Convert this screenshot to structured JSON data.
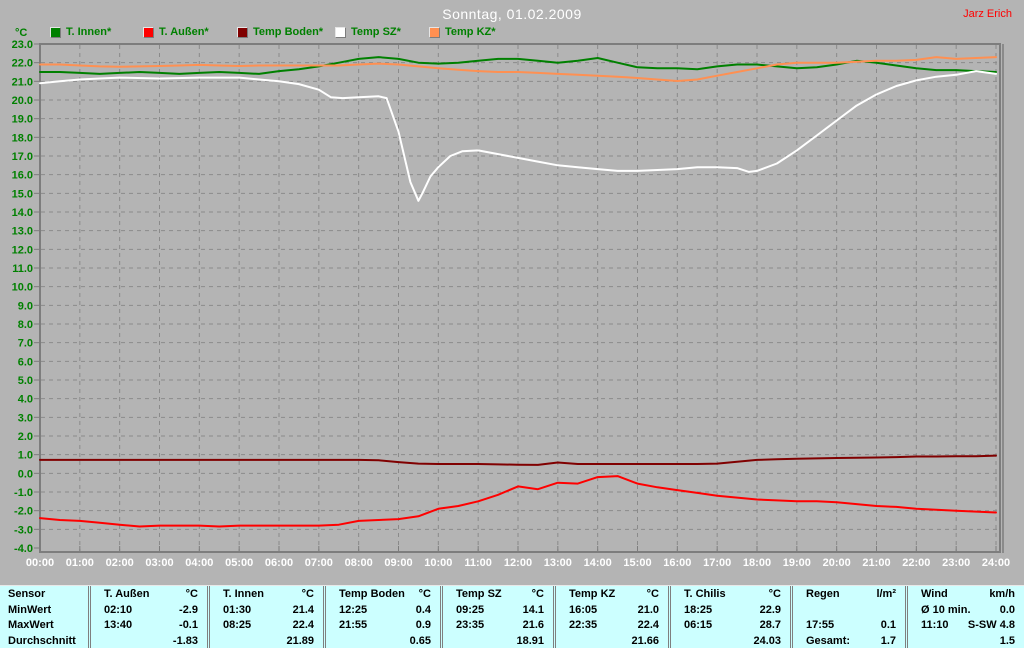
{
  "window": {
    "title": "Sonntag, 01.02.2009",
    "user": "Jarz Erich"
  },
  "legend": {
    "unit": "°C",
    "items": [
      {
        "label": "T. Innen*",
        "color": "#008000"
      },
      {
        "label": "T. Außen*",
        "color": "#ff0000"
      },
      {
        "label": "Temp Boden*",
        "color": "#800000"
      },
      {
        "label": "Temp SZ*",
        "color": "#ffffff"
      },
      {
        "label": "Temp KZ*",
        "color": "#ff9052"
      }
    ]
  },
  "colors": {
    "background": "#b4b4b4",
    "grid": "#8a8a8a",
    "axis": "#7d7d7d",
    "axis_text": "#008000",
    "time_text": "#ffffff",
    "title_text": "#ffffff",
    "user_text": "#ff0000",
    "table_bg": "#ccffff",
    "table_text": "#000000"
  },
  "chart_data": {
    "type": "line",
    "title": "Sonntag, 01.02.2009",
    "ylabel": "°C",
    "ylim": [
      -4.0,
      23.0
    ],
    "y_step": 1.0,
    "xlim": [
      0,
      24
    ],
    "grid": true,
    "legend_position": "top",
    "x_tick_labels": [
      "00:00",
      "01:00",
      "02:00",
      "03:00",
      "04:00",
      "05:00",
      "06:00",
      "07:00",
      "08:00",
      "09:00",
      "10:00",
      "11:00",
      "12:00",
      "13:00",
      "14:00",
      "15:00",
      "16:00",
      "17:00",
      "18:00",
      "19:00",
      "20:00",
      "21:00",
      "22:00",
      "23:00",
      "24:00"
    ],
    "series": [
      {
        "name": "T. Innen*",
        "color": "#008000",
        "x_start": 0,
        "x_step": 0.5,
        "values": [
          21.5,
          21.5,
          21.45,
          21.4,
          21.45,
          21.5,
          21.45,
          21.4,
          21.45,
          21.5,
          21.45,
          21.4,
          21.55,
          21.65,
          21.8,
          22.0,
          22.2,
          22.3,
          22.2,
          22.0,
          21.95,
          22.0,
          22.1,
          22.2,
          22.2,
          22.1,
          22.0,
          22.1,
          22.25,
          22.0,
          21.75,
          21.7,
          21.7,
          21.65,
          21.8,
          21.9,
          21.9,
          21.8,
          21.7,
          21.75,
          21.9,
          22.1,
          22.0,
          21.85,
          21.7,
          21.6,
          21.6,
          21.55,
          21.5
        ]
      },
      {
        "name": "T. Außen*",
        "color": "#ff0000",
        "x_start": 0,
        "x_step": 0.5,
        "values": [
          -2.4,
          -2.5,
          -2.55,
          -2.65,
          -2.75,
          -2.85,
          -2.8,
          -2.8,
          -2.8,
          -2.85,
          -2.8,
          -2.8,
          -2.8,
          -2.8,
          -2.8,
          -2.75,
          -2.55,
          -2.5,
          -2.45,
          -2.3,
          -1.9,
          -1.75,
          -1.5,
          -1.15,
          -0.7,
          -0.85,
          -0.5,
          -0.55,
          -0.2,
          -0.15,
          -0.55,
          -0.75,
          -0.9,
          -1.05,
          -1.2,
          -1.3,
          -1.4,
          -1.45,
          -1.5,
          -1.5,
          -1.55,
          -1.65,
          -1.75,
          -1.8,
          -1.9,
          -1.95,
          -2.0,
          -2.05,
          -2.1
        ]
      },
      {
        "name": "Temp Boden*",
        "color": "#800000",
        "x_start": 0,
        "x_step": 0.5,
        "values": [
          0.72,
          0.72,
          0.72,
          0.72,
          0.72,
          0.72,
          0.72,
          0.72,
          0.72,
          0.72,
          0.72,
          0.72,
          0.72,
          0.72,
          0.72,
          0.72,
          0.72,
          0.7,
          0.6,
          0.52,
          0.5,
          0.5,
          0.5,
          0.48,
          0.46,
          0.45,
          0.58,
          0.5,
          0.5,
          0.5,
          0.5,
          0.5,
          0.5,
          0.5,
          0.52,
          0.62,
          0.72,
          0.75,
          0.78,
          0.8,
          0.82,
          0.84,
          0.85,
          0.87,
          0.9,
          0.9,
          0.92,
          0.92,
          0.95
        ]
      },
      {
        "name": "Temp KZ*",
        "color": "#ff9052",
        "x_start": 0,
        "x_step": 0.5,
        "values": [
          21.9,
          21.9,
          21.85,
          21.8,
          21.78,
          21.8,
          21.82,
          21.85,
          21.88,
          21.85,
          21.82,
          21.85,
          21.85,
          21.85,
          21.85,
          21.85,
          21.9,
          21.95,
          21.9,
          21.8,
          21.7,
          21.62,
          21.55,
          21.5,
          21.5,
          21.45,
          21.4,
          21.35,
          21.3,
          21.25,
          21.18,
          21.1,
          21.02,
          21.1,
          21.3,
          21.5,
          21.7,
          21.9,
          22.0,
          22.0,
          22.0,
          22.05,
          22.1,
          22.1,
          22.15,
          22.3,
          22.2,
          22.25,
          22.3
        ]
      },
      {
        "name": "Temp SZ*",
        "color": "#ffffff",
        "points": [
          [
            0,
            20.9
          ],
          [
            0.5,
            21.0
          ],
          [
            1,
            21.1
          ],
          [
            1.5,
            21.15
          ],
          [
            2,
            21.2
          ],
          [
            3,
            21.15
          ],
          [
            4,
            21.2
          ],
          [
            5,
            21.2
          ],
          [
            5.5,
            21.1
          ],
          [
            6,
            21.0
          ],
          [
            6.5,
            20.85
          ],
          [
            7,
            20.55
          ],
          [
            7.3,
            20.15
          ],
          [
            7.6,
            20.1
          ],
          [
            8,
            20.15
          ],
          [
            8.5,
            20.2
          ],
          [
            8.7,
            20.1
          ],
          [
            9,
            18.3
          ],
          [
            9.3,
            15.6
          ],
          [
            9.5,
            14.6
          ],
          [
            9.6,
            15.0
          ],
          [
            9.8,
            15.9
          ],
          [
            10,
            16.4
          ],
          [
            10.3,
            17.0
          ],
          [
            10.6,
            17.25
          ],
          [
            11,
            17.3
          ],
          [
            11.5,
            17.1
          ],
          [
            12,
            16.9
          ],
          [
            12.5,
            16.7
          ],
          [
            13,
            16.5
          ],
          [
            13.5,
            16.4
          ],
          [
            14,
            16.3
          ],
          [
            14.5,
            16.2
          ],
          [
            15,
            16.2
          ],
          [
            15.5,
            16.25
          ],
          [
            16,
            16.3
          ],
          [
            16.5,
            16.4
          ],
          [
            17,
            16.4
          ],
          [
            17.5,
            16.35
          ],
          [
            17.8,
            16.15
          ],
          [
            18,
            16.2
          ],
          [
            18.5,
            16.6
          ],
          [
            19,
            17.3
          ],
          [
            19.5,
            18.1
          ],
          [
            20,
            18.9
          ],
          [
            20.5,
            19.7
          ],
          [
            21,
            20.3
          ],
          [
            21.5,
            20.75
          ],
          [
            22,
            21.05
          ],
          [
            22.5,
            21.25
          ],
          [
            23,
            21.35
          ],
          [
            23.5,
            21.55
          ],
          [
            24,
            21.4
          ]
        ]
      }
    ]
  },
  "table": {
    "row_labels": [
      "Sensor",
      "MinWert",
      "MaxWert",
      "Durchschnitt"
    ],
    "columns": [
      {
        "name": "T. Außen",
        "unit": "°C",
        "min_time": "02:10",
        "min_value": "-2.9",
        "max_time": "13:40",
        "max_value": "-0.1",
        "avg_label": "",
        "avg_value": "-1.83"
      },
      {
        "name": "T. Innen",
        "unit": "°C",
        "min_time": "01:30",
        "min_value": "21.4",
        "max_time": "08:25",
        "max_value": "22.4",
        "avg_label": "",
        "avg_value": "21.89"
      },
      {
        "name": "Temp Boden",
        "unit": "°C",
        "min_time": "12:25",
        "min_value": "0.4",
        "max_time": "21:55",
        "max_value": "0.9",
        "avg_label": "",
        "avg_value": "0.65"
      },
      {
        "name": "Temp SZ",
        "unit": "°C",
        "min_time": "09:25",
        "min_value": "14.1",
        "max_time": "23:35",
        "max_value": "21.6",
        "avg_label": "",
        "avg_value": "18.91"
      },
      {
        "name": "Temp KZ",
        "unit": "°C",
        "min_time": "16:05",
        "min_value": "21.0",
        "max_time": "22:35",
        "max_value": "22.4",
        "avg_label": "",
        "avg_value": "21.66"
      },
      {
        "name": "T. Chilis",
        "unit": "°C",
        "min_time": "18:25",
        "min_value": "22.9",
        "max_time": "06:15",
        "max_value": "28.7",
        "avg_label": "",
        "avg_value": "24.03"
      },
      {
        "name": "Regen",
        "unit": "l/m²",
        "min_time": "",
        "min_value": "",
        "max_time": "17:55",
        "max_value": "0.1",
        "avg_label": "Gesamt:",
        "avg_value": "1.7"
      },
      {
        "name": "Wind",
        "unit": "km/h",
        "min_time": "Ø 10 min.",
        "min_value": "0.0",
        "max_time": "11:10",
        "max_value": "S-SW 4.8",
        "avg_label": "",
        "avg_value": "1.5"
      }
    ]
  }
}
